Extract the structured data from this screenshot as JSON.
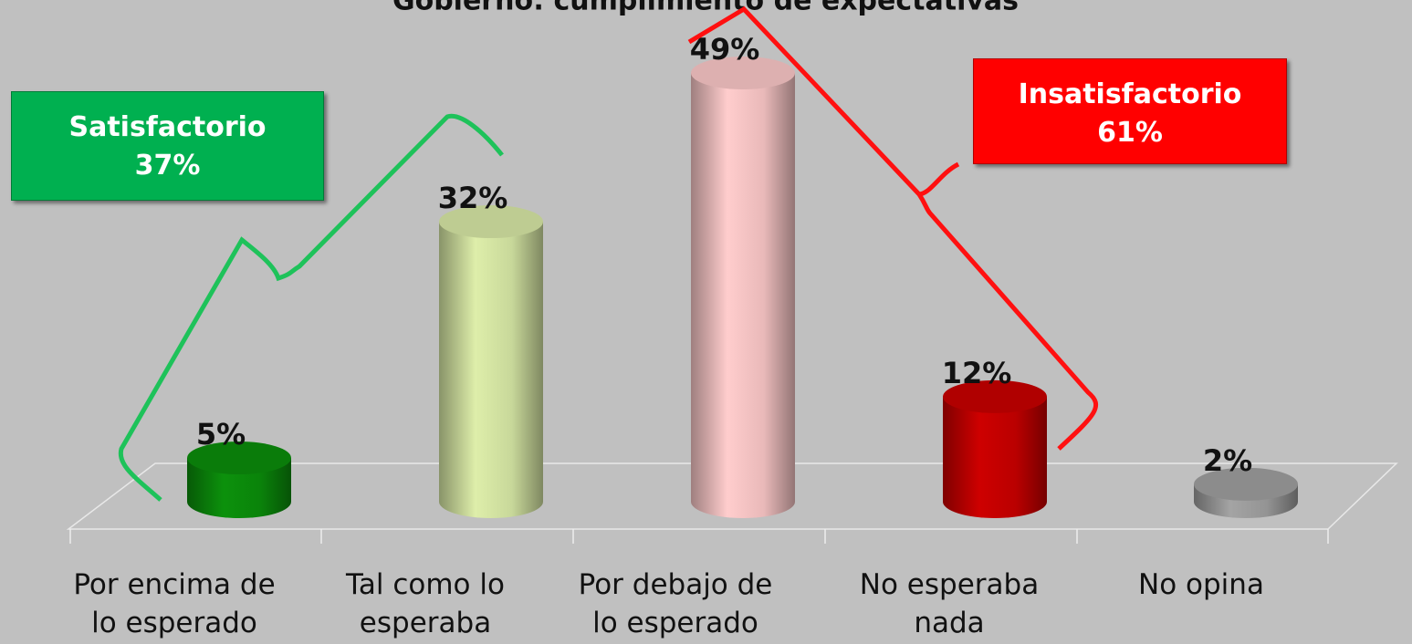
{
  "chart_data": {
    "type": "bar3d",
    "title": "Gobierno: cumplimiento de expectativas",
    "categories": [
      "Por encima de lo esperado",
      "Tal como lo esperaba",
      "Por debajo de lo esperado",
      "No esperaba nada",
      "No opina"
    ],
    "values": [
      5,
      32,
      49,
      12,
      2
    ],
    "value_labels": [
      "5%",
      "32%",
      "49%",
      "12%",
      "2%"
    ],
    "colors": [
      "#0b8a0b",
      "#d3e3a2",
      "#f5c3c3",
      "#c40000",
      "#9c9c9c"
    ],
    "annotations": [
      {
        "label": "Satisfactorio",
        "text": "37%",
        "color": "#00b050"
      },
      {
        "label": "Insatisfactorio",
        "text": "61%",
        "color": "#ff0000"
      }
    ]
  }
}
